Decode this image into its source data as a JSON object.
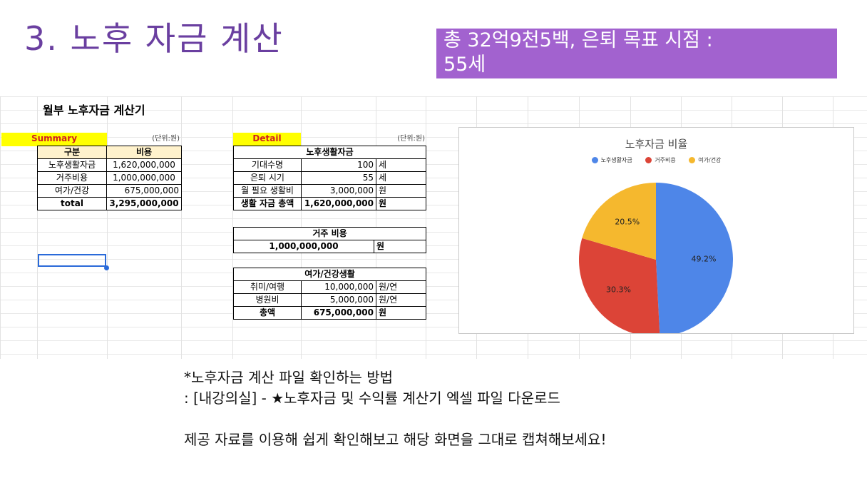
{
  "slide_title": "3. 노후 자금 계산",
  "banner": {
    "line1": "총 32억9천5백, 은퇴 목표 시점 :",
    "line2": "55세"
  },
  "sheet_title": "월부 노후자금 계산기",
  "summary": {
    "label": "Summary",
    "unit": "(단위:원)",
    "headers": [
      "구분",
      "비용"
    ],
    "rows": [
      {
        "name": "노후생활자금",
        "value": "1,620,000,000"
      },
      {
        "name": "거주비용",
        "value": "1,000,000,000"
      },
      {
        "name": "여가/건강",
        "value": "675,000,000"
      }
    ],
    "total_label": "total",
    "total_value": "3,295,000,000"
  },
  "detail": {
    "label": "Detail",
    "unit": "(단위:원)",
    "living": {
      "title": "노후생활자금",
      "rows": [
        {
          "name": "기대수명",
          "value": "100",
          "unit": "세"
        },
        {
          "name": "은퇴 시기",
          "value": "55",
          "unit": "세"
        },
        {
          "name": "월 필요 생활비",
          "value": "3,000,000",
          "unit": "원"
        }
      ],
      "total": {
        "name": "생활 자금 총액",
        "value": "1,620,000,000",
        "unit": "원"
      }
    },
    "housing": {
      "title": "거주 비용",
      "value": "1,000,000,000",
      "unit": "원"
    },
    "leisure": {
      "title": "여가/건강생활",
      "rows": [
        {
          "name": "취미/여행",
          "value": "10,000,000",
          "unit": "원/연"
        },
        {
          "name": "병원비",
          "value": "5,000,000",
          "unit": "원/연"
        }
      ],
      "total": {
        "name": "총액",
        "value": "675,000,000",
        "unit": "원"
      }
    }
  },
  "chart_data": {
    "type": "pie",
    "title": "노후자금 비율",
    "categories": [
      "노후생활자금",
      "거주비용",
      "여가/건강"
    ],
    "values": [
      49.2,
      30.3,
      20.5
    ],
    "labels": [
      "49.2%",
      "30.3%",
      "20.5%"
    ],
    "colors": [
      "#4e86e8",
      "#dc4437",
      "#f5b82e"
    ],
    "legend": "top"
  },
  "notes": {
    "line1": "*노후자금 계산 파일 확인하는 방법",
    "line2": ": [내강의실] - ★노후자금 및 수익률 계산기 엑셀 파일 다운로드",
    "line3": "제공 자료를 이용해 쉽게 확인해보고 해당 화면을 그대로 캡쳐해보세요!"
  }
}
